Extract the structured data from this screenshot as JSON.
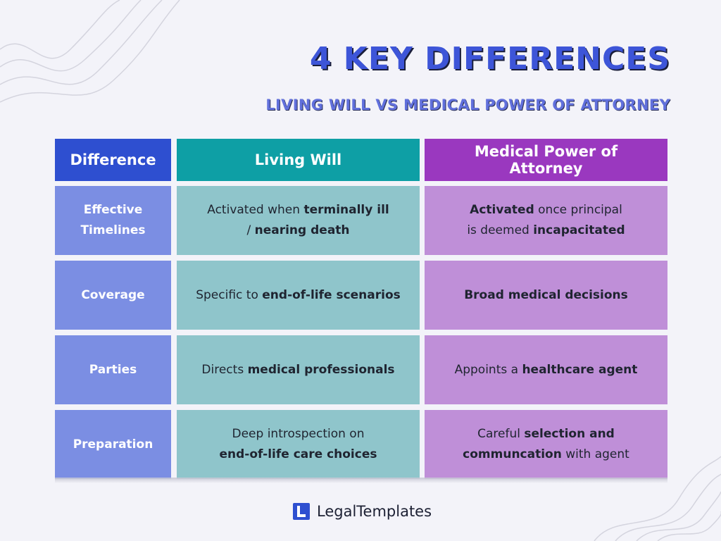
{
  "header": {
    "title": "4 KEY DIFFERENCES",
    "subtitle": "LIVING WILL VS MEDICAL POWER OF ATTORNEY"
  },
  "colors": {
    "background": "#f3f3f9",
    "title": "#3d55d8",
    "header_difference": "#2e4fd0",
    "header_living_will": "#0e9fa5",
    "header_mpoa": "#9a38bf",
    "row_label": "#7b8ee3",
    "living_will_cell": "#8fc5cb",
    "mpoa_cell": "#bf8fd8"
  },
  "table": {
    "columns": [
      "Difference",
      "Living Will",
      "Medical Power of Attorney"
    ],
    "rows": [
      {
        "label_line1": "Effective",
        "label_line2": "Timelines",
        "living_will": {
          "line1_a": "Activated when ",
          "line1_b": "terminally ill",
          "line2_a": "/ ",
          "line2_b": "nearing death"
        },
        "mpoa": {
          "line1_a": "Activated",
          "line1_b": " once principal",
          "line2_a": "is deemed ",
          "line2_b": "incapacitated"
        }
      },
      {
        "label": "Coverage",
        "living_will": {
          "a": "Specific to ",
          "b": "end-of-life scenarios"
        },
        "mpoa": {
          "b": "Broad medical decisions"
        }
      },
      {
        "label": "Parties",
        "living_will": {
          "a": "Directs ",
          "b": "medical professionals"
        },
        "mpoa": {
          "a": "Appoints a ",
          "b": "healthcare agent"
        }
      },
      {
        "label": "Preparation",
        "living_will": {
          "line1_a": "Deep introspection on",
          "line2_b": "end-of-life care choices"
        },
        "mpoa": {
          "line1_a": "Careful ",
          "line1_b": "selection and",
          "line2_b": "communcation",
          "line2_a": " with agent"
        }
      }
    ]
  },
  "footer": {
    "brand": "LegalTemplates",
    "logo_icon": "legaltemplates-logo-icon"
  }
}
